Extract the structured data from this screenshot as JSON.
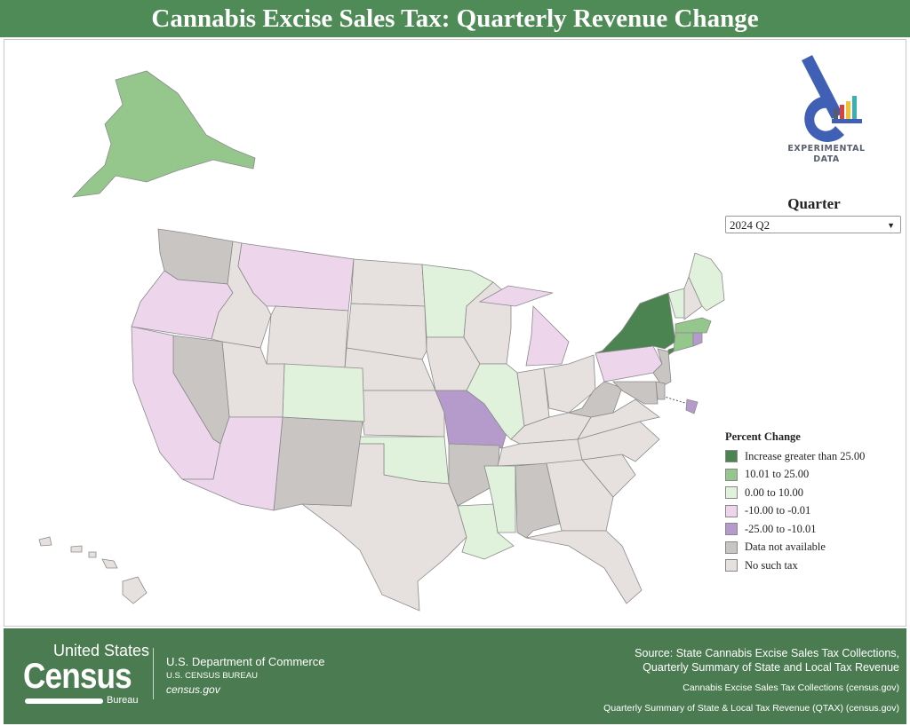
{
  "title": "Cannabis Excise Sales Tax: Quarterly Revenue Change",
  "logo": {
    "text_line1": "EXPERIMENTAL",
    "text_line2": "DATA",
    "bar_colors": [
      "#555c6e",
      "#d94040",
      "#f2c233",
      "#3ab0b0"
    ],
    "brand_color": "#3f60b5"
  },
  "quarter": {
    "label": "Quarter",
    "selected": "2024 Q2",
    "icon": "caret-down-icon"
  },
  "legend": {
    "title": "Percent Change",
    "items": [
      {
        "key": "inc25",
        "label": "Increase greater than 25.00",
        "color": "#4b8450"
      },
      {
        "key": "inc10",
        "label": "10.01 to 25.00",
        "color": "#95c78c"
      },
      {
        "key": "inc0",
        "label": "0.00 to 10.00",
        "color": "#e0f1dc"
      },
      {
        "key": "dec0",
        "label": "-10.00 to -0.01",
        "color": "#edd6ec"
      },
      {
        "key": "dec10",
        "label": "-25.00 to -10.01",
        "color": "#b49bcb"
      },
      {
        "key": "na",
        "label": "Data not available",
        "color": "#c9c5c3"
      },
      {
        "key": "none",
        "label": "No such tax",
        "color": "#e6e0de"
      }
    ]
  },
  "states": {
    "AK": "inc10",
    "HI": "none",
    "WA": "na",
    "OR": "dec0",
    "CA": "dec0",
    "ID": "none",
    "NV": "na",
    "MT": "dec0",
    "WY": "none",
    "UT": "none",
    "AZ": "dec0",
    "CO": "inc0",
    "NM": "na",
    "ND": "none",
    "SD": "none",
    "NE": "none",
    "KS": "none",
    "OK": "inc0",
    "TX": "none",
    "MN": "inc0",
    "IA": "none",
    "MO": "dec10",
    "AR": "na",
    "LA": "inc0",
    "WI": "none",
    "IL": "inc0",
    "MI": "dec0",
    "IN": "none",
    "OH": "none",
    "KY": "none",
    "TN": "none",
    "MS": "inc0",
    "AL": "na",
    "GA": "none",
    "FL": "none",
    "SC": "none",
    "NC": "none",
    "VA": "none",
    "WV": "na",
    "PA": "dec0",
    "NY": "inc25",
    "VT": "inc0",
    "NH": "none",
    "ME": "inc0",
    "MA": "inc10",
    "CT": "inc10",
    "RI": "dec10",
    "NJ": "na",
    "DE": "na",
    "MD": "na",
    "DC": "dec10"
  },
  "footer": {
    "logo_us": "United States",
    "logo_census": "Census",
    "logo_bureau": "Bureau",
    "dept": "U.S. Department of Commerce",
    "bureau": "U.S. CENSUS BUREAU",
    "site": "census.gov",
    "source_line1": "Source: State Cannabis Excise Sales Tax Collections,",
    "source_line2": "Quarterly Summary of State and Local Tax Revenue",
    "link1": "Cannabis Excise Sales Tax Collections (census.gov)",
    "link2": "Quarterly Summary of State & Local Tax Revenue (QTAX) (census.gov)"
  }
}
